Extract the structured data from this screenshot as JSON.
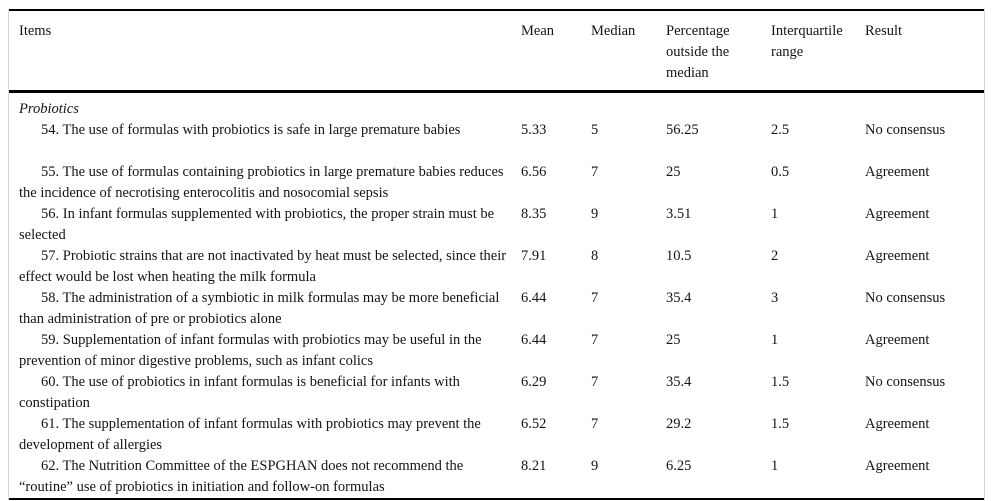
{
  "table": {
    "columns": [
      "Items",
      "Mean",
      "Median",
      "Percentage outside the median",
      "Interquartile range",
      "Result"
    ],
    "section_label": "Probiotics",
    "rows": [
      {
        "item": "54. The use of formulas with probiotics is safe in large premature babies",
        "mean": "5.33",
        "median": "5",
        "pct_outside_median": "56.25",
        "interquartile_range": "2.5",
        "result": "No consensus"
      },
      {
        "item": "55. The use of formulas containing probiotics in large premature babies reduces the incidence of necrotising enterocolitis and nosocomial sepsis",
        "mean": "6.56",
        "median": "7",
        "pct_outside_median": "25",
        "interquartile_range": "0.5",
        "result": "Agreement"
      },
      {
        "item": "56. In infant formulas supplemented with probiotics, the proper strain must be selected",
        "mean": "8.35",
        "median": "9",
        "pct_outside_median": "3.51",
        "interquartile_range": "1",
        "result": "Agreement"
      },
      {
        "item": "57. Probiotic strains that are not inactivated by heat must be selected, since their effect would be lost when heating the milk formula",
        "mean": "7.91",
        "median": "8",
        "pct_outside_median": "10.5",
        "interquartile_range": "2",
        "result": "Agreement"
      },
      {
        "item": "58. The administration of a symbiotic in milk formulas may be more beneficial than administration of pre or probiotics alone",
        "mean": "6.44",
        "median": "7",
        "pct_outside_median": "35.4",
        "interquartile_range": "3",
        "result": "No consensus"
      },
      {
        "item": "59. Supplementation of infant formulas with probiotics may be useful in the prevention of minor digestive problems, such as infant colics",
        "mean": "6.44",
        "median": "7",
        "pct_outside_median": "25",
        "interquartile_range": "1",
        "result": "Agreement"
      },
      {
        "item": "60. The use of probiotics in infant formulas is beneficial for infants with constipation",
        "mean": "6.29",
        "median": "7",
        "pct_outside_median": "35.4",
        "interquartile_range": "1.5",
        "result": "No consensus"
      },
      {
        "item": "61. The supplementation of infant formulas with probiotics may prevent the development of allergies",
        "mean": "6.52",
        "median": "7",
        "pct_outside_median": "29.2",
        "interquartile_range": "1.5",
        "result": "Agreement"
      },
      {
        "item": "62. The Nutrition Committee of the ESPGHAN does not recommend the “routine” use of probiotics in initiation and follow-on formulas",
        "mean": "8.21",
        "median": "9",
        "pct_outside_median": "6.25",
        "interquartile_range": "1",
        "result": "Agreement"
      }
    ]
  }
}
